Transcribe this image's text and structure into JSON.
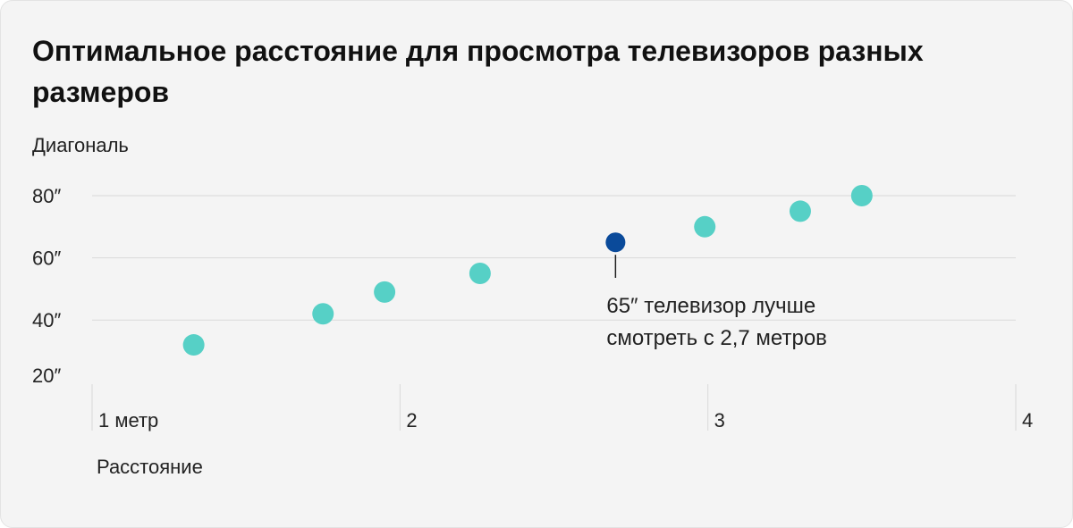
{
  "colors": {
    "background": "#f4f4f4",
    "point": "#56d0c6",
    "highlight": "#0a4a9a",
    "grid": "#d9d9d9",
    "text": "#222222"
  },
  "chart_data": {
    "type": "scatter",
    "title": "Оптимальное расстояние для просмотра телевизоров разных размеров",
    "ylabel": "Диагональ",
    "xlabel": "Расстояние",
    "xlim": [
      1,
      4
    ],
    "ylim": [
      20,
      80
    ],
    "x_ticks": [
      {
        "value": 1,
        "label": "1 метр"
      },
      {
        "value": 2,
        "label": "2"
      },
      {
        "value": 3,
        "label": "3"
      },
      {
        "value": 4,
        "label": "4"
      }
    ],
    "y_ticks": [
      {
        "value": 20,
        "label": "20″"
      },
      {
        "value": 40,
        "label": "40″"
      },
      {
        "value": 60,
        "label": "60″"
      },
      {
        "value": 80,
        "label": "80″"
      }
    ],
    "grid": true,
    "series": [
      {
        "points": [
          {
            "x": 1.33,
            "y": 32
          },
          {
            "x": 1.75,
            "y": 42
          },
          {
            "x": 1.95,
            "y": 49
          },
          {
            "x": 2.26,
            "y": 55
          },
          {
            "x": 2.7,
            "y": 65,
            "highlight": true
          },
          {
            "x": 2.99,
            "y": 70
          },
          {
            "x": 3.3,
            "y": 75
          },
          {
            "x": 3.5,
            "y": 80
          }
        ]
      }
    ],
    "annotation": {
      "x": 2.7,
      "y": 65,
      "lines": [
        "65″ телевизор лучше",
        "смотреть с 2,7 метров"
      ]
    }
  }
}
